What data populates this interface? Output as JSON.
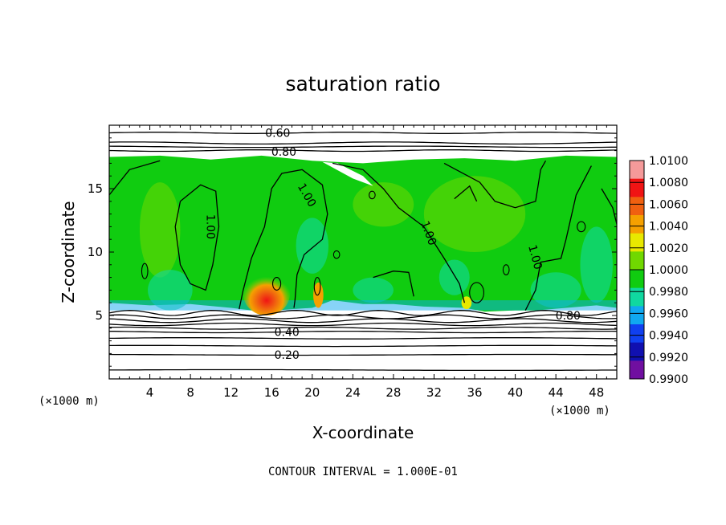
{
  "chart_data": {
    "type": "heatmap",
    "title": "saturation ratio",
    "xlabel": "X-coordinate",
    "ylabel": "Z-coordinate",
    "x_unit": "(×1000 m)",
    "xlim": [
      0,
      50
    ],
    "ylim": [
      0,
      20
    ],
    "x_ticks": [
      4,
      8,
      12,
      16,
      20,
      24,
      28,
      32,
      36,
      40,
      44,
      48
    ],
    "y_ticks": [
      5,
      10,
      15
    ],
    "colorbar": {
      "labels": [
        "1.0100",
        "1.0080",
        "1.0060",
        "1.0040",
        "1.0020",
        "1.0000",
        "0.9980",
        "0.9960",
        "0.9940",
        "0.9920",
        "0.9900"
      ],
      "colors": [
        "#f59a9a",
        "#f01414",
        "#f06010",
        "#f5a000",
        "#e8e800",
        "#70d800",
        "#10cc10",
        "#10d8a0",
        "#10a8f0",
        "#1040f0",
        "#1010b0",
        "#700fa0"
      ]
    },
    "contour_labels": [
      "0.60",
      "0.80",
      "1.00",
      "1.00",
      "1.00",
      "1.00",
      "0.80",
      "0.40",
      "0.20"
    ],
    "contour_interval_text": "CONTOUR INTERVAL = 1.000E-01"
  }
}
